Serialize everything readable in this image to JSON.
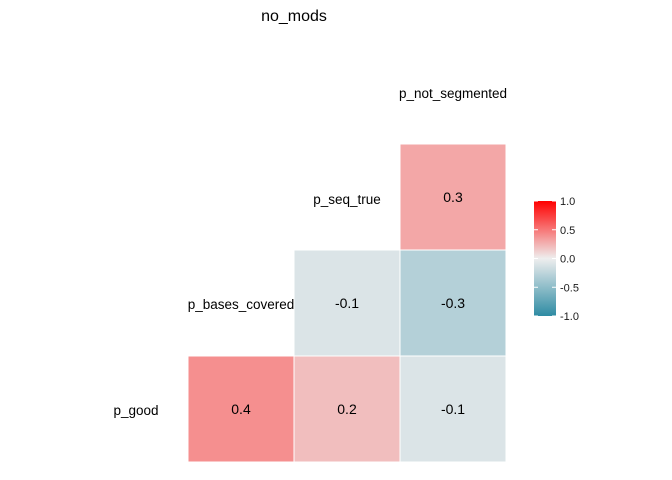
{
  "chart_data": {
    "type": "heatmap",
    "title": "no_mods",
    "variables": [
      "p_good",
      "p_bases_covered",
      "p_seq_true",
      "p_not_segmented"
    ],
    "cells": [
      {
        "row": "p_good",
        "col": "p_bases_covered",
        "value": 0.4,
        "label": "0.4"
      },
      {
        "row": "p_good",
        "col": "p_seq_true",
        "value": 0.2,
        "label": "0.2"
      },
      {
        "row": "p_good",
        "col": "p_not_segmented",
        "value": -0.1,
        "label": "-0.1"
      },
      {
        "row": "p_bases_covered",
        "col": "p_seq_true",
        "value": -0.1,
        "label": "-0.1"
      },
      {
        "row": "p_bases_covered",
        "col": "p_not_segmented",
        "value": -0.3,
        "label": "-0.3"
      },
      {
        "row": "p_seq_true",
        "col": "p_not_segmented",
        "value": 0.3,
        "label": "0.3"
      }
    ],
    "legend": {
      "position": "right",
      "range": [
        -1,
        1
      ],
      "ticks": [
        "1.0",
        "0.5",
        "0.0",
        "-0.5",
        "-1.0"
      ],
      "tick_values": [
        1.0,
        0.5,
        0.0,
        -0.5,
        -1.0
      ]
    },
    "colors": {
      "low": "#2e8ba3",
      "mid": "#eeeeee",
      "high": "#ff0000",
      "cell_border": "#ffffff",
      "text": "#000000"
    }
  }
}
